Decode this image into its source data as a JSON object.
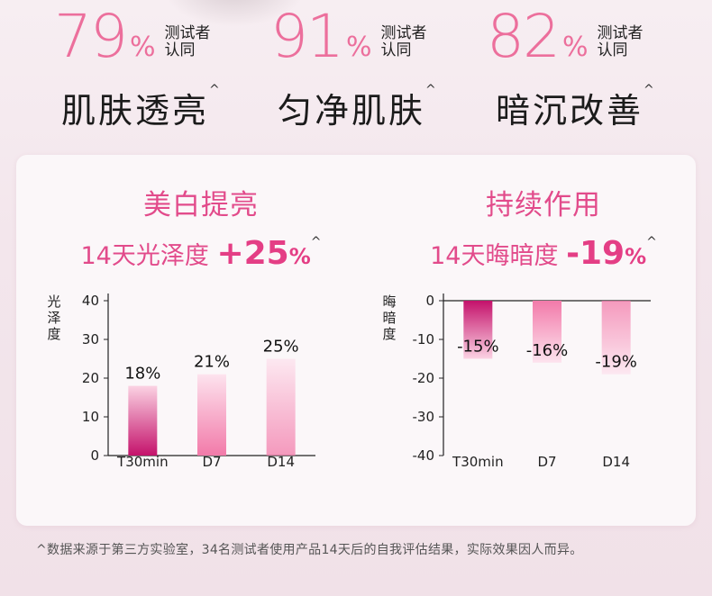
{
  "stats": [
    {
      "percent": "79",
      "sign": "%",
      "note_line1": "测试者",
      "note_line2": "认同",
      "label": "肌肤透亮",
      "mark": "^"
    },
    {
      "percent": "91",
      "sign": "%",
      "note_line1": "测试者",
      "note_line2": "认同",
      "label": "匀净肌肤",
      "mark": "^"
    },
    {
      "percent": "82",
      "sign": "%",
      "note_line1": "测试者",
      "note_line2": "认同",
      "label": "暗沉改善",
      "mark": "^"
    }
  ],
  "claims": [
    {
      "heading": "美白提亮",
      "prefix": "14天光泽度",
      "value": "+25",
      "pct": "%",
      "mark": "^"
    },
    {
      "heading": "持续作用",
      "prefix": "14天晦暗度",
      "value": "-19",
      "pct": "%",
      "mark": "^"
    }
  ],
  "colors": {
    "accent": "#e24b8b",
    "bar_dark": "#c4126b",
    "bar_light": "#fbd2e3"
  },
  "chart_data": [
    {
      "type": "bar",
      "ylabel": "光泽度",
      "categories": [
        "T30min",
        "D7",
        "D14"
      ],
      "values": [
        18,
        21,
        25
      ],
      "value_labels": [
        "18%",
        "21%",
        "25%"
      ],
      "ylim": [
        0,
        40
      ],
      "yticks": [
        0,
        10,
        20,
        30,
        40
      ],
      "grid": false
    },
    {
      "type": "bar",
      "ylabel": "晦暗度",
      "categories": [
        "T30min",
        "D7",
        "D14"
      ],
      "values": [
        -15,
        -16,
        -19
      ],
      "value_labels": [
        "-15%",
        "-16%",
        "-19%"
      ],
      "ylim": [
        -40,
        0
      ],
      "yticks": [
        0,
        -10,
        -20,
        -30,
        -40
      ],
      "grid": false
    }
  ],
  "footnote": "^数据来源于第三方实验室，34名测试者使用产品14天后的自我评估结果，实际效果因人而异。"
}
